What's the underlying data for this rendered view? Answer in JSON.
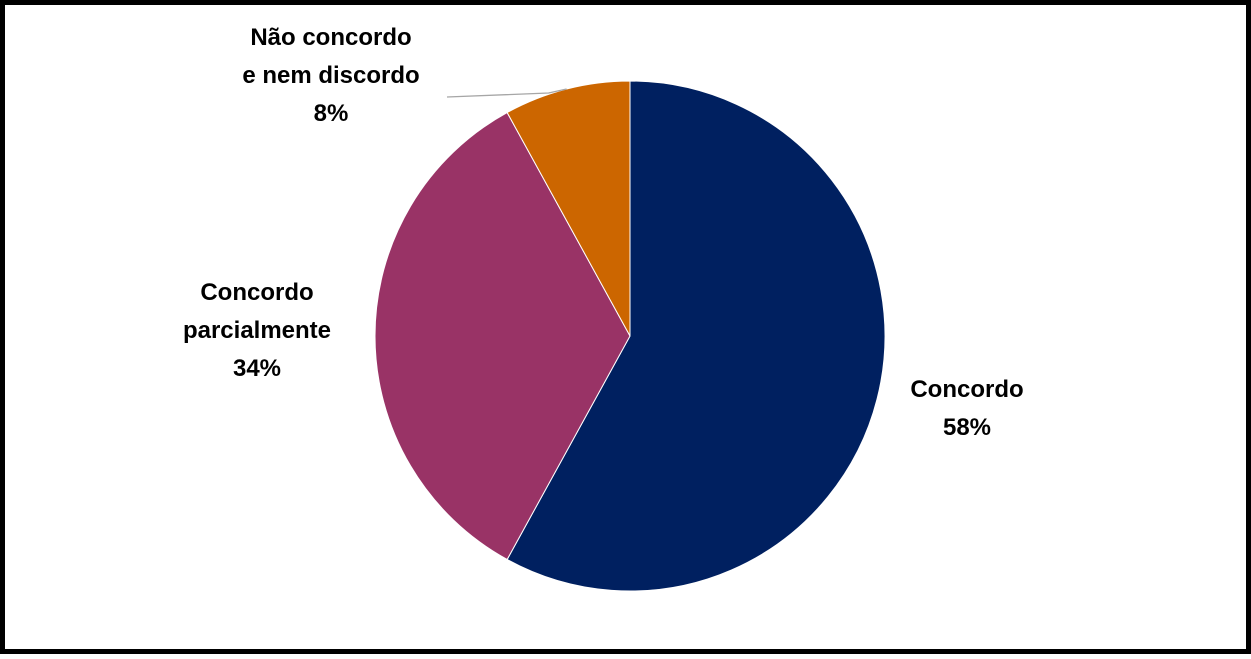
{
  "chart_data": {
    "type": "pie",
    "title": "",
    "start_angle_deg": 0,
    "direction": "clockwise",
    "slices": [
      {
        "label_lines": [
          "Concordo"
        ],
        "value": 58,
        "value_label": "58%",
        "color": "#002060"
      },
      {
        "label_lines": [
          "Concordo",
          "parcialmente"
        ],
        "value": 34,
        "value_label": "34%",
        "color": "#993366"
      },
      {
        "label_lines": [
          "Não  concordo",
          "e nem discordo"
        ],
        "value": 8,
        "value_label": "8%",
        "color": "#CC6600"
      }
    ],
    "legend": "none",
    "data_labels": "outside"
  }
}
